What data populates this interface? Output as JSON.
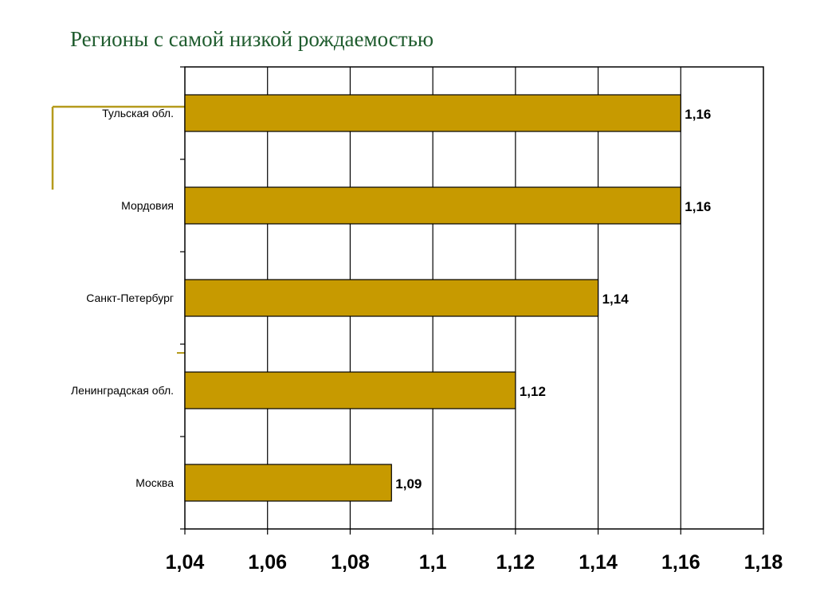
{
  "slide": {
    "title": "Регионы с самой низкой рождаемостью",
    "accent_color": "#b59a1c",
    "title_color": "#1f5c2e"
  },
  "chart_data": {
    "type": "bar",
    "orientation": "horizontal",
    "categories": [
      "Тульская обл.",
      "Мордовия",
      "Санкт-Петербург",
      "Ленинградская обл.",
      "Москва"
    ],
    "values": [
      1.16,
      1.16,
      1.14,
      1.12,
      1.09
    ],
    "data_labels": [
      "1,16",
      "1,16",
      "1,14",
      "1,12",
      "1,09"
    ],
    "xlim": [
      1.04,
      1.18
    ],
    "x_ticks": [
      1.04,
      1.06,
      1.08,
      1.1,
      1.12,
      1.14,
      1.16,
      1.18
    ],
    "x_tick_labels": [
      "1,04",
      "1,06",
      "1,08",
      "1,1",
      "1,12",
      "1,14",
      "1,16",
      "1,18"
    ],
    "grid": "vertical",
    "bar_color": "#c79a00",
    "legend": "none"
  }
}
